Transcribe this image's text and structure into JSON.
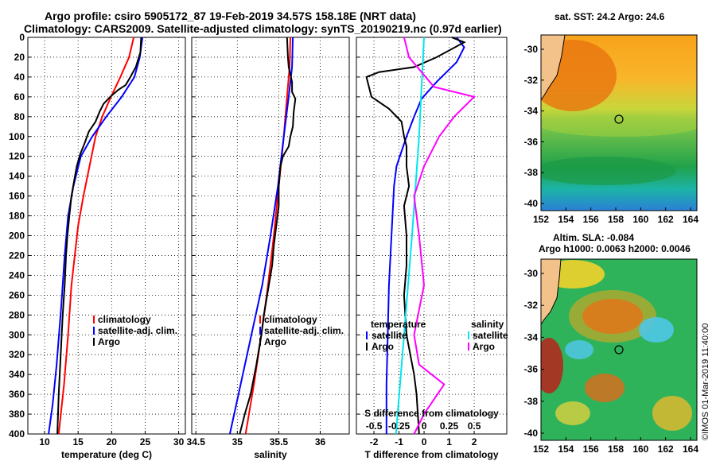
{
  "header": {
    "title_line1": "Argo profile: csiro 5905172_87 19-Feb-2019 34.57S 158.18E (NRT data)",
    "title_line2": "Climatology: CARS2009. Satellite-adjusted climatology: synTS_20190219.nc (0.97d earlier)"
  },
  "footer": "©IMOS 01-Mar-2019 11:40:00",
  "colors": {
    "climatology": "#ff0000",
    "satellite": "#0000ff",
    "argo": "#000000",
    "sat_salinity": "#00e5ee",
    "salinity_diff": "#ff00ff"
  },
  "chart_data": [
    {
      "type": "line",
      "id": "temperature",
      "xlabel": "temperature (deg C)",
      "xlim": [
        7.5,
        31
      ],
      "ylim": [
        400,
        0
      ],
      "xticks": [
        10,
        15,
        20,
        25,
        30
      ],
      "yticks": [
        0,
        20,
        40,
        60,
        80,
        100,
        120,
        140,
        160,
        180,
        200,
        220,
        240,
        260,
        280,
        300,
        320,
        340,
        360,
        380,
        400
      ],
      "legend": [
        "climatology",
        "satellite-adj. clim.",
        "Argo"
      ],
      "series": [
        {
          "name": "climatology",
          "color": "#ff0000",
          "points": [
            [
              23.3,
              0
            ],
            [
              22.6,
              20
            ],
            [
              21.3,
              40
            ],
            [
              19.9,
              60
            ],
            [
              18.6,
              80
            ],
            [
              17.6,
              100
            ],
            [
              16.7,
              130
            ],
            [
              15.8,
              160
            ],
            [
              15,
              190
            ],
            [
              14.5,
              220
            ],
            [
              14,
              250
            ],
            [
              13.5,
              300
            ],
            [
              12.9,
              350
            ],
            [
              12.1,
              400
            ]
          ]
        },
        {
          "name": "satellite-adj. clim.",
          "color": "#0000ff",
          "points": [
            [
              24.6,
              0
            ],
            [
              24.2,
              20
            ],
            [
              23.4,
              40
            ],
            [
              21.5,
              60
            ],
            [
              19.2,
              80
            ],
            [
              17.1,
              100
            ],
            [
              15.4,
              120
            ],
            [
              14.3,
              150
            ],
            [
              13.5,
              180
            ],
            [
              13,
              220
            ],
            [
              12.5,
              270
            ],
            [
              11.8,
              330
            ],
            [
              11.2,
              370
            ],
            [
              10.6,
              400
            ]
          ]
        },
        {
          "name": "Argo",
          "color": "#000000",
          "points": [
            [
              24.4,
              0
            ],
            [
              24.3,
              15
            ],
            [
              23.6,
              30
            ],
            [
              22.8,
              40
            ],
            [
              22.1,
              48
            ],
            [
              21,
              53
            ],
            [
              19.8,
              60
            ],
            [
              18.8,
              67
            ],
            [
              18.2,
              75
            ],
            [
              17.6,
              85
            ],
            [
              16.6,
              95
            ],
            [
              15.9,
              108
            ],
            [
              15.3,
              118
            ],
            [
              14.8,
              130
            ],
            [
              14.4,
              145
            ],
            [
              14,
              160
            ],
            [
              13.7,
              180
            ],
            [
              13.4,
              200
            ],
            [
              13.2,
              220
            ],
            [
              13,
              250
            ],
            [
              12.7,
              280
            ],
            [
              12.4,
              320
            ],
            [
              12.1,
              360
            ],
            [
              11.9,
              400
            ]
          ]
        }
      ]
    },
    {
      "type": "line",
      "id": "salinity",
      "xlabel": "salinity",
      "xlim": [
        34.45,
        36.35
      ],
      "ylim": [
        400,
        0
      ],
      "xticks": [
        34.5,
        35,
        35.5,
        36
      ],
      "xticklabels": [
        "34.5",
        "35",
        "35.5",
        "36"
      ],
      "legend": [
        "climatology",
        "satellite-adj. clim.",
        "Argo"
      ],
      "series": [
        {
          "name": "climatology",
          "color": "#ff0000",
          "points": [
            [
              35.64,
              0
            ],
            [
              35.63,
              30
            ],
            [
              35.6,
              60
            ],
            [
              35.56,
              100
            ],
            [
              35.5,
              150
            ],
            [
              35.44,
              200
            ],
            [
              35.37,
              250
            ],
            [
              35.29,
              300
            ],
            [
              35.2,
              350
            ],
            [
              35.1,
              400
            ]
          ]
        },
        {
          "name": "satellite-adj. clim.",
          "color": "#0000ff",
          "points": [
            [
              35.67,
              0
            ],
            [
              35.66,
              30
            ],
            [
              35.62,
              60
            ],
            [
              35.56,
              100
            ],
            [
              35.49,
              150
            ],
            [
              35.4,
              200
            ],
            [
              35.3,
              250
            ],
            [
              35.17,
              300
            ],
            [
              35.04,
              350
            ],
            [
              34.91,
              400
            ]
          ]
        },
        {
          "name": "Argo",
          "color": "#000000",
          "points": [
            [
              35.6,
              0
            ],
            [
              35.61,
              20
            ],
            [
              35.62,
              30
            ],
            [
              35.66,
              45
            ],
            [
              35.66,
              55
            ],
            [
              35.7,
              62
            ],
            [
              35.68,
              75
            ],
            [
              35.67,
              90
            ],
            [
              35.64,
              100
            ],
            [
              35.62,
              110
            ],
            [
              35.55,
              120
            ],
            [
              35.52,
              130
            ],
            [
              35.5,
              150
            ],
            [
              35.5,
              170
            ],
            [
              35.47,
              190
            ],
            [
              35.44,
              210
            ],
            [
              35.42,
              230
            ],
            [
              35.38,
              250
            ],
            [
              35.32,
              280
            ],
            [
              35.29,
              300
            ],
            [
              35.23,
              330
            ],
            [
              35.16,
              360
            ],
            [
              35.09,
              380
            ],
            [
              35.03,
              400
            ]
          ]
        }
      ]
    },
    {
      "type": "line",
      "id": "differences",
      "xlabel": "T difference from climatology",
      "xlabel_top": "S difference from climatology",
      "xlim": [
        -2.7,
        3.3
      ],
      "ylim": [
        400,
        0
      ],
      "xticks": [
        -2,
        -1,
        0,
        1,
        2
      ],
      "xticklabels": [
        "-2",
        "-1",
        "0",
        "1",
        "2"
      ],
      "s_xticklabels": [
        "-0.5",
        "-0.25",
        "0",
        "0.25",
        "0.5"
      ],
      "legend": [
        "temperature",
        "satellite",
        "Argo",
        "salinity",
        "satellite",
        "Argo"
      ],
      "series": [
        {
          "name": "T satellite",
          "color": "#0000ff",
          "points": [
            [
              1.3,
              0
            ],
            [
              1.6,
              10
            ],
            [
              1.3,
              25
            ],
            [
              0.5,
              45
            ],
            [
              -0.1,
              62
            ],
            [
              -0.4,
              80
            ],
            [
              -0.7,
              100
            ],
            [
              -0.9,
              115
            ],
            [
              -1.1,
              130
            ],
            [
              -1.2,
              150
            ],
            [
              -1.3,
              200
            ],
            [
              -1.4,
              250
            ],
            [
              -1.45,
              300
            ],
            [
              -1.5,
              350
            ],
            [
              -1.5,
              400
            ]
          ]
        },
        {
          "name": "T Argo",
          "color": "#000000",
          "points": [
            [
              1.1,
              0
            ],
            [
              1.6,
              5
            ],
            [
              0.5,
              20
            ],
            [
              -0.4,
              30
            ],
            [
              -1.8,
              35
            ],
            [
              -2.3,
              40
            ],
            [
              -2.1,
              60
            ],
            [
              -1.4,
              72
            ],
            [
              -0.9,
              85
            ],
            [
              -0.8,
              100
            ],
            [
              -0.7,
              110
            ],
            [
              -0.7,
              130
            ],
            [
              -0.6,
              150
            ],
            [
              -0.8,
              170
            ],
            [
              -0.7,
              200
            ],
            [
              -0.7,
              230
            ],
            [
              -0.8,
              260
            ],
            [
              -0.7,
              300
            ],
            [
              -0.4,
              340
            ],
            [
              -0.3,
              360
            ],
            [
              -0.2,
              400
            ]
          ]
        },
        {
          "name": "S satellite",
          "color": "#00e5ee",
          "points": [
            [
              0,
              0
            ],
            [
              -0.05,
              100
            ],
            [
              -0.12,
              200
            ],
            [
              -0.2,
              300
            ],
            [
              -0.28,
              400
            ]
          ]
        },
        {
          "name": "S Argo",
          "color": "#ff00ff",
          "points": [
            [
              -0.2,
              0
            ],
            [
              -0.15,
              20
            ],
            [
              0.1,
              50
            ],
            [
              0.5,
              60
            ],
            [
              0.3,
              80
            ],
            [
              0.15,
              100
            ],
            [
              0,
              130
            ],
            [
              -0.1,
              160
            ],
            [
              -0.05,
              200
            ],
            [
              0,
              250
            ],
            [
              -0.1,
              300
            ],
            [
              -0.05,
              330
            ],
            [
              0.2,
              350
            ],
            [
              0,
              380
            ],
            [
              -0.1,
              400
            ]
          ]
        }
      ]
    },
    {
      "type": "heatmap",
      "id": "sst-map",
      "title": "sat. SST: 24.2 Argo: 24.6",
      "xticks": [
        "152",
        "154",
        "156",
        "158",
        "160",
        "162",
        "164"
      ],
      "yticks": [
        "-30",
        "-32",
        "-34",
        "-36",
        "-38",
        "-40"
      ],
      "marker": {
        "lon": 158.18,
        "lat": -34.57
      }
    },
    {
      "type": "heatmap",
      "id": "sla-map",
      "title": "Altim. SLA: -0.084",
      "subtitle": "Argo h1000: 0.0063 h2000: 0.0046",
      "xticks": [
        "152",
        "154",
        "156",
        "158",
        "160",
        "162",
        "164"
      ],
      "yticks": [
        "-30",
        "-32",
        "-34",
        "-36",
        "-38",
        "-40"
      ],
      "marker": {
        "lon": 158.18,
        "lat": -34.57
      }
    }
  ]
}
